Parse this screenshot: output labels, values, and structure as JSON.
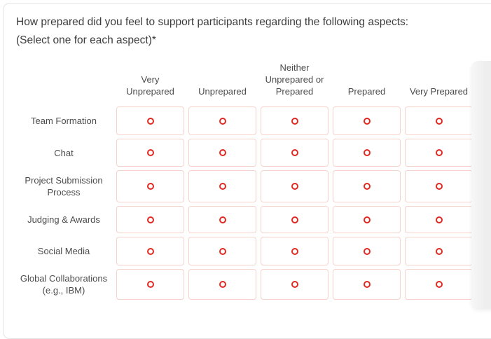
{
  "question": {
    "text": "How prepared did you feel to support participants regarding the following aspects:\n(Select one for each aspect)*",
    "required_marker": "*"
  },
  "grid": {
    "columns": [
      "Very\nUnprepared",
      "Unprepared",
      "Neither\nUnprepared or\nPrepared",
      "Prepared",
      "Very Prepared"
    ],
    "rows": [
      {
        "label": "Team Formation",
        "selected": null
      },
      {
        "label": "Chat",
        "selected": null
      },
      {
        "label": "Project Submission Process",
        "selected": null
      },
      {
        "label": "Judging & Awards",
        "selected": null
      },
      {
        "label": "Social Media",
        "selected": null
      },
      {
        "label": "Global Collaborations (e.g., IBM)",
        "selected": null
      }
    ]
  },
  "colors": {
    "radio_ring": "#e02a22",
    "cell_border": "#f6d2cb",
    "card_border": "#e3e3e3",
    "label_text": "#4c4c4c",
    "question_text": "#3d3d3d",
    "scroll_strip": "#eeeeee"
  }
}
